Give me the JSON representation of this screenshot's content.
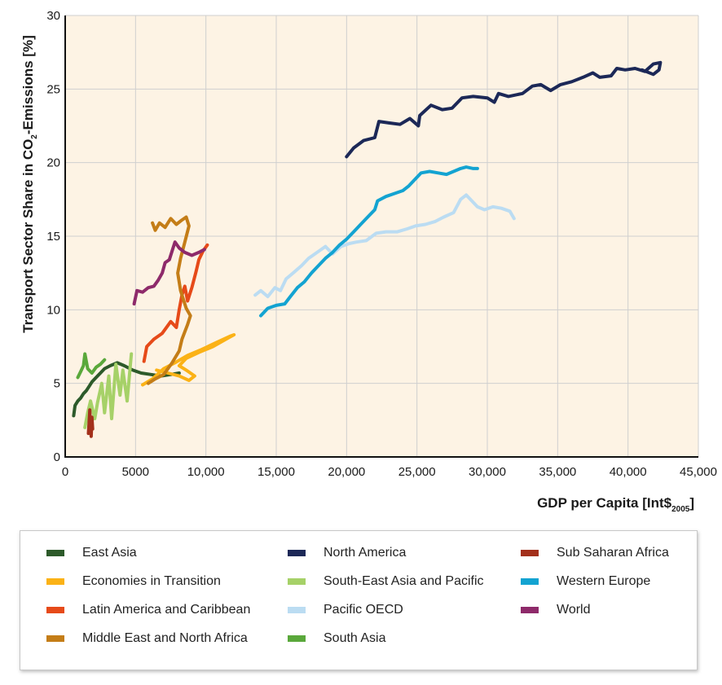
{
  "chart_data": {
    "type": "line",
    "title": "",
    "xlabel": "GDP per Capita [Int$",
    "xlabel_sub": "2005",
    "xlabel_end": "]",
    "ylabel": "Transport Sector Share in CO",
    "ylabel_sub": "2",
    "ylabel_end": "-Emissions [%]",
    "xlim": [
      0,
      45000
    ],
    "ylim": [
      0,
      30
    ],
    "grid": true,
    "background": "#fdf3e4",
    "xticks": [
      {
        "value": 0,
        "label": "0"
      },
      {
        "value": 5000,
        "label": "5000"
      },
      {
        "value": 10000,
        "label": "10,000"
      },
      {
        "value": 15000,
        "label": "15,000"
      },
      {
        "value": 20000,
        "label": "20,000"
      },
      {
        "value": 25000,
        "label": "25,000"
      },
      {
        "value": 30000,
        "label": "30,000"
      },
      {
        "value": 35000,
        "label": "35,000"
      },
      {
        "value": 40000,
        "label": "40,000"
      },
      {
        "value": 45000,
        "label": "45,000"
      }
    ],
    "yticks": [
      {
        "value": 0,
        "label": "0"
      },
      {
        "value": 5,
        "label": "5"
      },
      {
        "value": 10,
        "label": "10"
      },
      {
        "value": 15,
        "label": "15"
      },
      {
        "value": 20,
        "label": "20"
      },
      {
        "value": 25,
        "label": "25"
      },
      {
        "value": 30,
        "label": "30"
      }
    ],
    "series": [
      {
        "name": "East Asia",
        "color": "#2d5a2a",
        "points": [
          [
            600,
            2.8
          ],
          [
            700,
            3.5
          ],
          [
            900,
            3.8
          ],
          [
            1100,
            4.0
          ],
          [
            1300,
            4.3
          ],
          [
            1500,
            4.5
          ],
          [
            1700,
            4.8
          ],
          [
            1900,
            5.1
          ],
          [
            2200,
            5.4
          ],
          [
            2500,
            5.7
          ],
          [
            2800,
            6.0
          ],
          [
            3200,
            6.2
          ],
          [
            3700,
            6.4
          ],
          [
            4200,
            6.2
          ],
          [
            4800,
            5.9
          ],
          [
            5400,
            5.7
          ],
          [
            6100,
            5.6
          ],
          [
            6800,
            5.5
          ],
          [
            7500,
            5.6
          ],
          [
            8100,
            5.7
          ]
        ]
      },
      {
        "name": "Economies in Transition",
        "color": "#fbb216",
        "points": [
          [
            5500,
            4.9
          ],
          [
            6200,
            5.3
          ],
          [
            7000,
            6.0
          ],
          [
            7800,
            6.4
          ],
          [
            8700,
            6.9
          ],
          [
            9700,
            7.3
          ],
          [
            10800,
            7.8
          ],
          [
            11700,
            8.2
          ],
          [
            12000,
            8.3
          ],
          [
            11600,
            8.1
          ],
          [
            10500,
            7.5
          ],
          [
            9500,
            7.1
          ],
          [
            8600,
            6.7
          ],
          [
            8100,
            6.2
          ],
          [
            8600,
            5.9
          ],
          [
            9200,
            5.5
          ],
          [
            8800,
            5.2
          ],
          [
            8100,
            5.5
          ],
          [
            7300,
            5.7
          ],
          [
            6500,
            5.9
          ]
        ]
      },
      {
        "name": "Latin America and Caribbean",
        "color": "#e64a19",
        "points": [
          [
            5600,
            6.5
          ],
          [
            5800,
            7.5
          ],
          [
            6300,
            8.0
          ],
          [
            6900,
            8.4
          ],
          [
            7500,
            9.2
          ],
          [
            7900,
            8.8
          ],
          [
            8100,
            10.0
          ],
          [
            8300,
            11.0
          ],
          [
            8500,
            11.6
          ],
          [
            8700,
            10.6
          ],
          [
            9000,
            11.5
          ],
          [
            9300,
            12.6
          ],
          [
            9500,
            13.4
          ],
          [
            9800,
            14.0
          ],
          [
            10100,
            14.4
          ]
        ]
      },
      {
        "name": "Middle East and North Africa",
        "color": "#c47d17",
        "points": [
          [
            6200,
            15.9
          ],
          [
            6400,
            15.4
          ],
          [
            6700,
            15.9
          ],
          [
            7100,
            15.6
          ],
          [
            7500,
            16.2
          ],
          [
            7900,
            15.8
          ],
          [
            8300,
            16.1
          ],
          [
            8600,
            16.3
          ],
          [
            8800,
            15.7
          ],
          [
            8500,
            14.6
          ],
          [
            8200,
            13.5
          ],
          [
            8000,
            12.5
          ],
          [
            8200,
            11.3
          ],
          [
            8600,
            10.1
          ],
          [
            8900,
            9.6
          ],
          [
            8700,
            9.0
          ],
          [
            8300,
            8.0
          ],
          [
            8100,
            7.2
          ],
          [
            7600,
            6.4
          ],
          [
            7000,
            5.6
          ],
          [
            6400,
            5.3
          ],
          [
            5900,
            5.0
          ]
        ]
      },
      {
        "name": "North America",
        "color": "#1c2857",
        "points": [
          [
            20000,
            20.4
          ],
          [
            20500,
            21.0
          ],
          [
            21200,
            21.5
          ],
          [
            22000,
            21.7
          ],
          [
            22300,
            22.8
          ],
          [
            23000,
            22.7
          ],
          [
            23800,
            22.6
          ],
          [
            24500,
            23.0
          ],
          [
            25100,
            22.5
          ],
          [
            25200,
            23.2
          ],
          [
            26000,
            23.9
          ],
          [
            26800,
            23.6
          ],
          [
            27500,
            23.7
          ],
          [
            28200,
            24.4
          ],
          [
            29000,
            24.5
          ],
          [
            30000,
            24.4
          ],
          [
            30500,
            24.1
          ],
          [
            30800,
            24.7
          ],
          [
            31500,
            24.5
          ],
          [
            32500,
            24.7
          ],
          [
            33200,
            25.2
          ],
          [
            33800,
            25.3
          ],
          [
            34500,
            24.9
          ],
          [
            35200,
            25.3
          ],
          [
            36000,
            25.5
          ],
          [
            36800,
            25.8
          ],
          [
            37500,
            26.1
          ],
          [
            38000,
            25.8
          ],
          [
            38800,
            25.9
          ],
          [
            39200,
            26.4
          ],
          [
            39800,
            26.3
          ],
          [
            40500,
            26.4
          ],
          [
            41200,
            26.2
          ],
          [
            41800,
            26.7
          ],
          [
            42300,
            26.8
          ],
          [
            42200,
            26.3
          ],
          [
            41800,
            26.0
          ],
          [
            41000,
            26.3
          ]
        ]
      },
      {
        "name": "South-East Asia and Pacific",
        "color": "#a6d168",
        "points": [
          [
            1400,
            2.0
          ],
          [
            1600,
            3.0
          ],
          [
            1800,
            3.8
          ],
          [
            2100,
            2.6
          ],
          [
            2300,
            3.7
          ],
          [
            2600,
            5.0
          ],
          [
            2800,
            3.0
          ],
          [
            3100,
            5.5
          ],
          [
            3300,
            2.6
          ],
          [
            3600,
            6.3
          ],
          [
            3900,
            4.2
          ],
          [
            4100,
            5.9
          ],
          [
            4400,
            3.8
          ],
          [
            4700,
            7.0
          ]
        ]
      },
      {
        "name": "Pacific OECD",
        "color": "#bbdcf2",
        "points": [
          [
            13500,
            11.0
          ],
          [
            13900,
            11.3
          ],
          [
            14400,
            10.9
          ],
          [
            14900,
            11.5
          ],
          [
            15300,
            11.3
          ],
          [
            15700,
            12.1
          ],
          [
            16200,
            12.5
          ],
          [
            16800,
            13.0
          ],
          [
            17300,
            13.5
          ],
          [
            17900,
            13.9
          ],
          [
            18500,
            14.3
          ],
          [
            19000,
            13.8
          ],
          [
            19600,
            14.3
          ],
          [
            20200,
            14.5
          ],
          [
            20700,
            14.6
          ],
          [
            21400,
            14.7
          ],
          [
            22100,
            15.2
          ],
          [
            22800,
            15.3
          ],
          [
            23600,
            15.3
          ],
          [
            24300,
            15.5
          ],
          [
            24900,
            15.7
          ],
          [
            25600,
            15.8
          ],
          [
            26300,
            16.0
          ],
          [
            26900,
            16.3
          ],
          [
            27600,
            16.6
          ],
          [
            28100,
            17.5
          ],
          [
            28500,
            17.8
          ],
          [
            28900,
            17.4
          ],
          [
            29300,
            17.0
          ],
          [
            29800,
            16.8
          ],
          [
            30400,
            17.0
          ],
          [
            31000,
            16.9
          ],
          [
            31600,
            16.7
          ],
          [
            31900,
            16.2
          ]
        ]
      },
      {
        "name": "Western Europe",
        "color": "#13a3d1",
        "points": [
          [
            13900,
            9.6
          ],
          [
            14400,
            10.1
          ],
          [
            15000,
            10.3
          ],
          [
            15600,
            10.4
          ],
          [
            16000,
            10.9
          ],
          [
            16500,
            11.5
          ],
          [
            17000,
            11.9
          ],
          [
            17500,
            12.5
          ],
          [
            18000,
            13.0
          ],
          [
            18500,
            13.5
          ],
          [
            19000,
            13.9
          ],
          [
            19500,
            14.4
          ],
          [
            20000,
            14.8
          ],
          [
            20500,
            15.3
          ],
          [
            21000,
            15.8
          ],
          [
            21500,
            16.3
          ],
          [
            22000,
            16.8
          ],
          [
            22200,
            17.4
          ],
          [
            22800,
            17.7
          ],
          [
            23400,
            17.9
          ],
          [
            24000,
            18.1
          ],
          [
            24400,
            18.4
          ],
          [
            24900,
            18.9
          ],
          [
            25300,
            19.3
          ],
          [
            25900,
            19.4
          ],
          [
            26500,
            19.3
          ],
          [
            27100,
            19.2
          ],
          [
            27600,
            19.4
          ],
          [
            28100,
            19.6
          ],
          [
            28500,
            19.7
          ],
          [
            29000,
            19.6
          ],
          [
            29300,
            19.6
          ]
        ]
      },
      {
        "name": "World",
        "color": "#8e2a6a",
        "points": [
          [
            4900,
            10.4
          ],
          [
            5100,
            11.3
          ],
          [
            5500,
            11.2
          ],
          [
            5900,
            11.5
          ],
          [
            6300,
            11.6
          ],
          [
            6600,
            12.0
          ],
          [
            6900,
            12.5
          ],
          [
            7100,
            13.2
          ],
          [
            7400,
            13.4
          ],
          [
            7600,
            14.0
          ],
          [
            7800,
            14.6
          ],
          [
            8100,
            14.2
          ],
          [
            8500,
            13.9
          ],
          [
            9000,
            13.7
          ],
          [
            9500,
            13.9
          ],
          [
            9900,
            14.1
          ]
        ]
      },
      {
        "name": "South Asia",
        "color": "#5aa83b",
        "points": [
          [
            900,
            5.4
          ],
          [
            1100,
            5.8
          ],
          [
            1300,
            6.2
          ],
          [
            1400,
            7.0
          ],
          [
            1600,
            6.0
          ],
          [
            1900,
            5.7
          ],
          [
            2200,
            6.1
          ],
          [
            2500,
            6.3
          ],
          [
            2800,
            6.6
          ]
        ]
      },
      {
        "name": "Sub Saharan Africa",
        "color": "#a3301b",
        "points": [
          [
            1650,
            1.6
          ],
          [
            1700,
            2.4
          ],
          [
            1750,
            3.2
          ],
          [
            1800,
            2.0
          ],
          [
            1850,
            1.4
          ],
          [
            1900,
            2.7
          ],
          [
            1950,
            1.9
          ]
        ]
      }
    ]
  },
  "legend": {
    "columns": [
      [
        {
          "label": "East Asia",
          "color": "#2d5a2a"
        },
        {
          "label": "Economies in Transition",
          "color": "#fbb216"
        },
        {
          "label": "Latin America and Caribbean",
          "color": "#e64a19"
        },
        {
          "label": "Middle East and North Africa",
          "color": "#c47d17"
        }
      ],
      [
        {
          "label": "North America",
          "color": "#1c2857"
        },
        {
          "label": "South-East Asia and Pacific",
          "color": "#a6d168"
        },
        {
          "label": "Pacific OECD",
          "color": "#bbdcf2"
        },
        {
          "label": "South Asia",
          "color": "#5aa83b"
        }
      ],
      [
        {
          "label": "Sub Saharan Africa",
          "color": "#a3301b"
        },
        {
          "label": "Western Europe",
          "color": "#13a3d1"
        },
        {
          "label": "World",
          "color": "#8e2a6a"
        }
      ]
    ]
  }
}
